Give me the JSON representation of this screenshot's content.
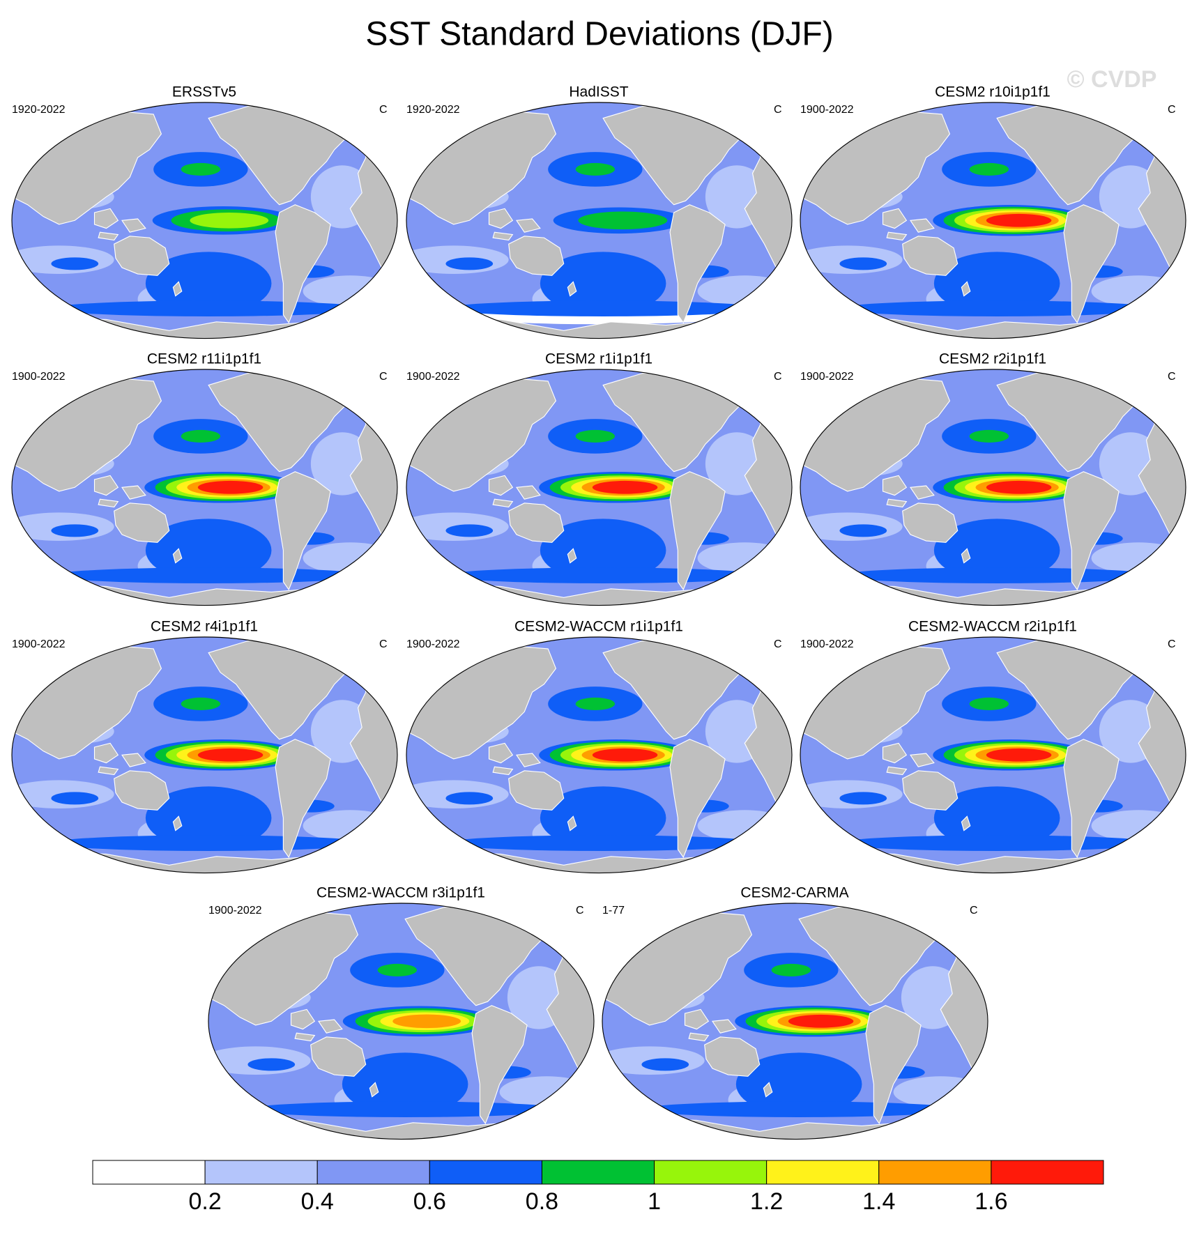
{
  "title": "SST Standard Deviations (DJF)",
  "watermark": "© CVDP",
  "panels": [
    {
      "title": "ERSSTv5",
      "period": "1920-2022",
      "units": "C"
    },
    {
      "title": "HadISST",
      "period": "1920-2022",
      "units": "C"
    },
    {
      "title": "CESM2 r10i1p1f1",
      "period": "1900-2022",
      "units": "C"
    },
    {
      "title": "CESM2 r11i1p1f1",
      "period": "1900-2022",
      "units": "C"
    },
    {
      "title": "CESM2 r1i1p1f1",
      "period": "1900-2022",
      "units": "C"
    },
    {
      "title": "CESM2 r2i1p1f1",
      "period": "1900-2022",
      "units": "C"
    },
    {
      "title": "CESM2 r4i1p1f1",
      "period": "1900-2022",
      "units": "C"
    },
    {
      "title": "CESM2-WACCM r1i1p1f1",
      "period": "1900-2022",
      "units": "C"
    },
    {
      "title": "CESM2-WACCM r2i1p1f1",
      "period": "1900-2022",
      "units": "C"
    },
    {
      "title": "CESM2-WACCM r3i1p1f1",
      "period": "1900-2022",
      "units": "C"
    },
    {
      "title": "CESM2-CARMA",
      "period": "1-77",
      "units": "C"
    }
  ],
  "colorbar": {
    "levels": [
      0.2,
      0.4,
      0.6,
      0.8,
      1,
      1.2,
      1.4,
      1.6
    ],
    "colors": [
      "#ffffff",
      "#b4c5fb",
      "#8097f4",
      "#0f5ef7",
      "#00c133",
      "#97f50b",
      "#fff21a",
      "#ff9d00",
      "#ff1a0a"
    ]
  }
}
